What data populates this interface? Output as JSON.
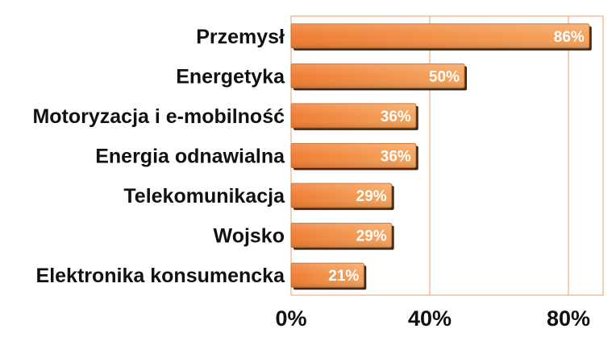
{
  "chart_data": {
    "type": "bar",
    "orientation": "horizontal",
    "categories": [
      "Przemysł",
      "Energetyka",
      "Motoryzacja i e-mobilność",
      "Energia odnawialna",
      "Telekomunikacja",
      "Wojsko",
      "Elektronika konsumencka"
    ],
    "values": [
      86,
      50,
      36,
      36,
      29,
      29,
      21
    ],
    "value_labels": [
      "86%",
      "50%",
      "36%",
      "36%",
      "29%",
      "29%",
      "21%"
    ],
    "x_ticks": [
      0,
      40,
      80
    ],
    "x_tick_labels": [
      "0%",
      "40%",
      "80%"
    ],
    "xlim": [
      0,
      90
    ],
    "grid": true,
    "legend": "none",
    "colors": {
      "bar": "#ef7d33",
      "bar_light": "#f5a45e",
      "bar_shadow": "#3a2a1c",
      "gridline": "#e8a070",
      "frame": "#e8a070"
    }
  }
}
